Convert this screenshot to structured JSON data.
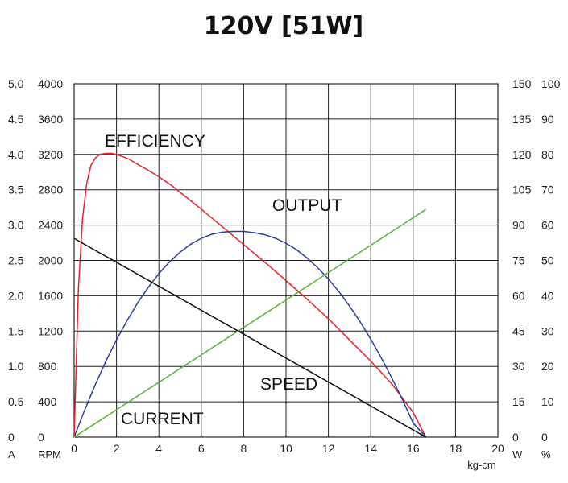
{
  "chart_data": {
    "type": "line",
    "title": "120V [51W]",
    "x": {
      "label": "kg-cm",
      "range": [
        0,
        20
      ],
      "ticks": [
        "0",
        "2",
        "4",
        "6",
        "8",
        "10",
        "12",
        "14",
        "16",
        "18",
        "20"
      ]
    },
    "axes": {
      "current": {
        "unit": "A",
        "range": [
          0,
          5.0
        ],
        "ticks": [
          "0",
          "0.5",
          "1.0",
          "1.5",
          "2.0",
          "2.5",
          "3.0",
          "3.5",
          "4.0",
          "4.5",
          "5.0"
        ]
      },
      "speed": {
        "unit": "RPM",
        "range": [
          0,
          4000
        ],
        "ticks": [
          "0",
          "400",
          "800",
          "1200",
          "1600",
          "2000",
          "2400",
          "2800",
          "3200",
          "3600",
          "4000"
        ]
      },
      "output": {
        "unit": "W",
        "range": [
          0,
          150
        ],
        "ticks": [
          "0",
          "15",
          "30",
          "45",
          "60",
          "75",
          "90",
          "105",
          "120",
          "135",
          "150"
        ]
      },
      "efficiency": {
        "unit": "%",
        "range": [
          0,
          100
        ],
        "ticks": [
          "0",
          "10",
          "20",
          "30",
          "40",
          "50",
          "60",
          "70",
          "80",
          "90",
          "100"
        ]
      }
    },
    "grid": true,
    "series": [
      {
        "name": "EFFICIENCY",
        "axis": "efficiency",
        "color": "#e8202a",
        "x": [
          0,
          0.2,
          0.4,
          0.6,
          0.8,
          1.0,
          1.2,
          1.5,
          1.8,
          2.2,
          2.6,
          3.0,
          3.5,
          4.0,
          4.6,
          5.0,
          6.0,
          7.0,
          8.0,
          9.0,
          10.0,
          11.0,
          12.0,
          13.0,
          14.0,
          15.0,
          16.0,
          16.6
        ],
        "y": [
          0,
          42,
          62,
          72,
          77,
          79,
          80,
          80.3,
          80.3,
          79.6,
          78.6,
          77.2,
          75.5,
          73.7,
          71.2,
          69.3,
          64.5,
          59.5,
          54.5,
          49.5,
          44.3,
          39.0,
          33.5,
          27.5,
          21.5,
          15.0,
          7.0,
          0
        ]
      },
      {
        "name": "OUTPUT",
        "axis": "output",
        "color": "#2a3fa0",
        "x": [
          0,
          0.5,
          1,
          1.5,
          2,
          2.5,
          3,
          3.5,
          4,
          4.5,
          5,
          5.5,
          6,
          6.5,
          7,
          7.5,
          8,
          8.3,
          8.5,
          9,
          9.5,
          10,
          10.5,
          11,
          11.5,
          12,
          12.5,
          13,
          13.5,
          14,
          14.5,
          15,
          15.5,
          16,
          16.6
        ],
        "y": [
          0,
          11.6,
          22.3,
          32.2,
          41.3,
          49.5,
          57.0,
          63.6,
          69.4,
          74.4,
          78.5,
          81.9,
          84.4,
          86.1,
          87.0,
          87.3,
          87.3,
          87.0,
          86.8,
          85.9,
          84.4,
          82.3,
          79.5,
          76.0,
          71.9,
          67.1,
          61.7,
          55.6,
          48.9,
          41.6,
          33.6,
          25.0,
          15.8,
          6.0,
          0
        ]
      },
      {
        "name": "SPEED",
        "axis": "speed",
        "color": "#111111",
        "x": [
          0,
          16.6
        ],
        "y": [
          2250,
          0
        ]
      },
      {
        "name": "CURRENT",
        "axis": "current",
        "color": "#55b22a",
        "x": [
          0,
          16.6
        ],
        "y": [
          0,
          3.22
        ]
      }
    ]
  }
}
